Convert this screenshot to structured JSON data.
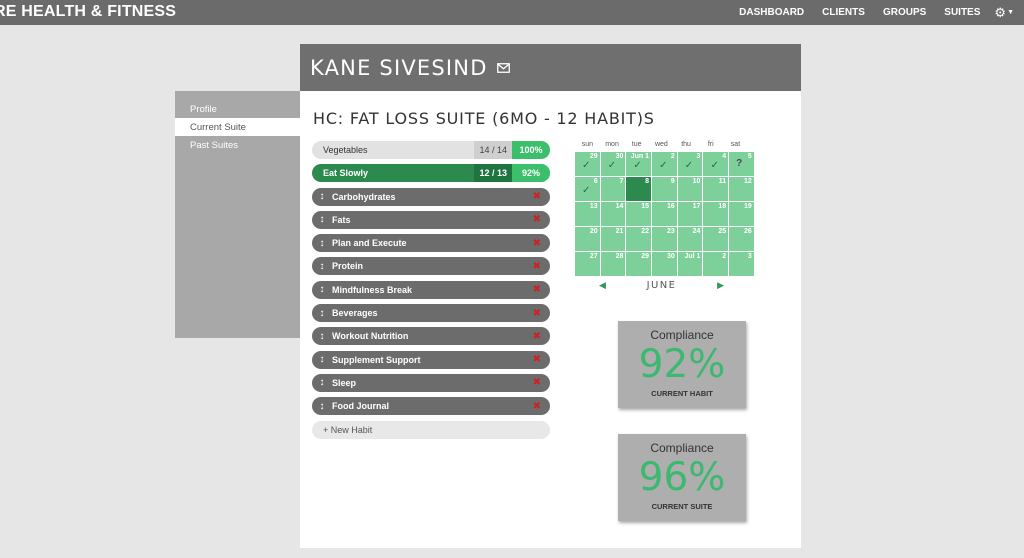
{
  "topbar": {
    "brand": "RE HEALTH & FITNESS",
    "nav": [
      "DASHBOARD",
      "CLIENTS",
      "GROUPS",
      "SUITES"
    ],
    "settings_icon": "gear-icon"
  },
  "sidemenu": {
    "items": [
      {
        "label": "Profile",
        "active": false
      },
      {
        "label": "Current Suite",
        "active": true
      },
      {
        "label": "Past Suites",
        "active": false
      }
    ]
  },
  "client": {
    "name": "KANE SIVESIND",
    "mail_icon": "envelope-icon"
  },
  "suite": {
    "title": "HC: FAT LOSS SUITE (6MO - 12 HABIT)S"
  },
  "habits": {
    "completed": [
      {
        "name": "Vegetables",
        "ratio": "14 / 14",
        "percent": "100%",
        "style": "light"
      },
      {
        "name": "Eat Slowly",
        "ratio": "12 / 13",
        "percent": "92%",
        "style": "dark"
      }
    ],
    "pending": [
      "Carbohydrates",
      "Fats",
      "Plan and Execute",
      "Protein",
      "Mindfulness Break",
      "Beverages",
      "Workout Nutrition",
      "Supplement Support",
      "Sleep",
      "Food Journal"
    ],
    "new_habit_label": "+ New Habit",
    "drag_icon": "drag-handle-icon",
    "delete_icon": "delete-x-icon"
  },
  "calendar": {
    "weekdays": [
      "sun",
      "mon",
      "tue",
      "wed",
      "thu",
      "fri",
      "sat"
    ],
    "days": [
      {
        "label": "29",
        "mark": "check"
      },
      {
        "label": "30",
        "mark": "check"
      },
      {
        "label": "Jun 1",
        "mark": "check"
      },
      {
        "label": "2",
        "mark": "check"
      },
      {
        "label": "3",
        "mark": "check"
      },
      {
        "label": "4",
        "mark": "check"
      },
      {
        "label": "5",
        "mark": "question"
      },
      {
        "label": "6",
        "mark": "check"
      },
      {
        "label": "7",
        "mark": ""
      },
      {
        "label": "8",
        "mark": "",
        "today": true
      },
      {
        "label": "9",
        "mark": ""
      },
      {
        "label": "10",
        "mark": ""
      },
      {
        "label": "11",
        "mark": ""
      },
      {
        "label": "12",
        "mark": ""
      },
      {
        "label": "13",
        "mark": ""
      },
      {
        "label": "14",
        "mark": ""
      },
      {
        "label": "15",
        "mark": ""
      },
      {
        "label": "16",
        "mark": ""
      },
      {
        "label": "17",
        "mark": ""
      },
      {
        "label": "18",
        "mark": ""
      },
      {
        "label": "19",
        "mark": ""
      },
      {
        "label": "20",
        "mark": ""
      },
      {
        "label": "21",
        "mark": ""
      },
      {
        "label": "22",
        "mark": ""
      },
      {
        "label": "23",
        "mark": ""
      },
      {
        "label": "24",
        "mark": ""
      },
      {
        "label": "25",
        "mark": ""
      },
      {
        "label": "26",
        "mark": ""
      },
      {
        "label": "27",
        "mark": ""
      },
      {
        "label": "28",
        "mark": ""
      },
      {
        "label": "29",
        "mark": ""
      },
      {
        "label": "30",
        "mark": ""
      },
      {
        "label": "Jul 1",
        "mark": ""
      },
      {
        "label": "2",
        "mark": ""
      },
      {
        "label": "3",
        "mark": ""
      }
    ],
    "month": "JUNE",
    "prev_icon": "triangle-left-icon",
    "next_icon": "triangle-right-icon"
  },
  "compliance": [
    {
      "label": "Compliance",
      "value": "92%",
      "caption": "CURRENT HABIT"
    },
    {
      "label": "Compliance",
      "value": "96%",
      "caption": "CURRENT SUITE"
    }
  ],
  "colors": {
    "topbar": "#6b6b6b",
    "panel_header": "#6f6f6f",
    "accent_green": "#3bbf6a",
    "dark_green": "#2c8a4e",
    "calendar_green": "#7dd09a",
    "habit_gray": "#6c6c6c",
    "delete_red": "#cc2222"
  }
}
